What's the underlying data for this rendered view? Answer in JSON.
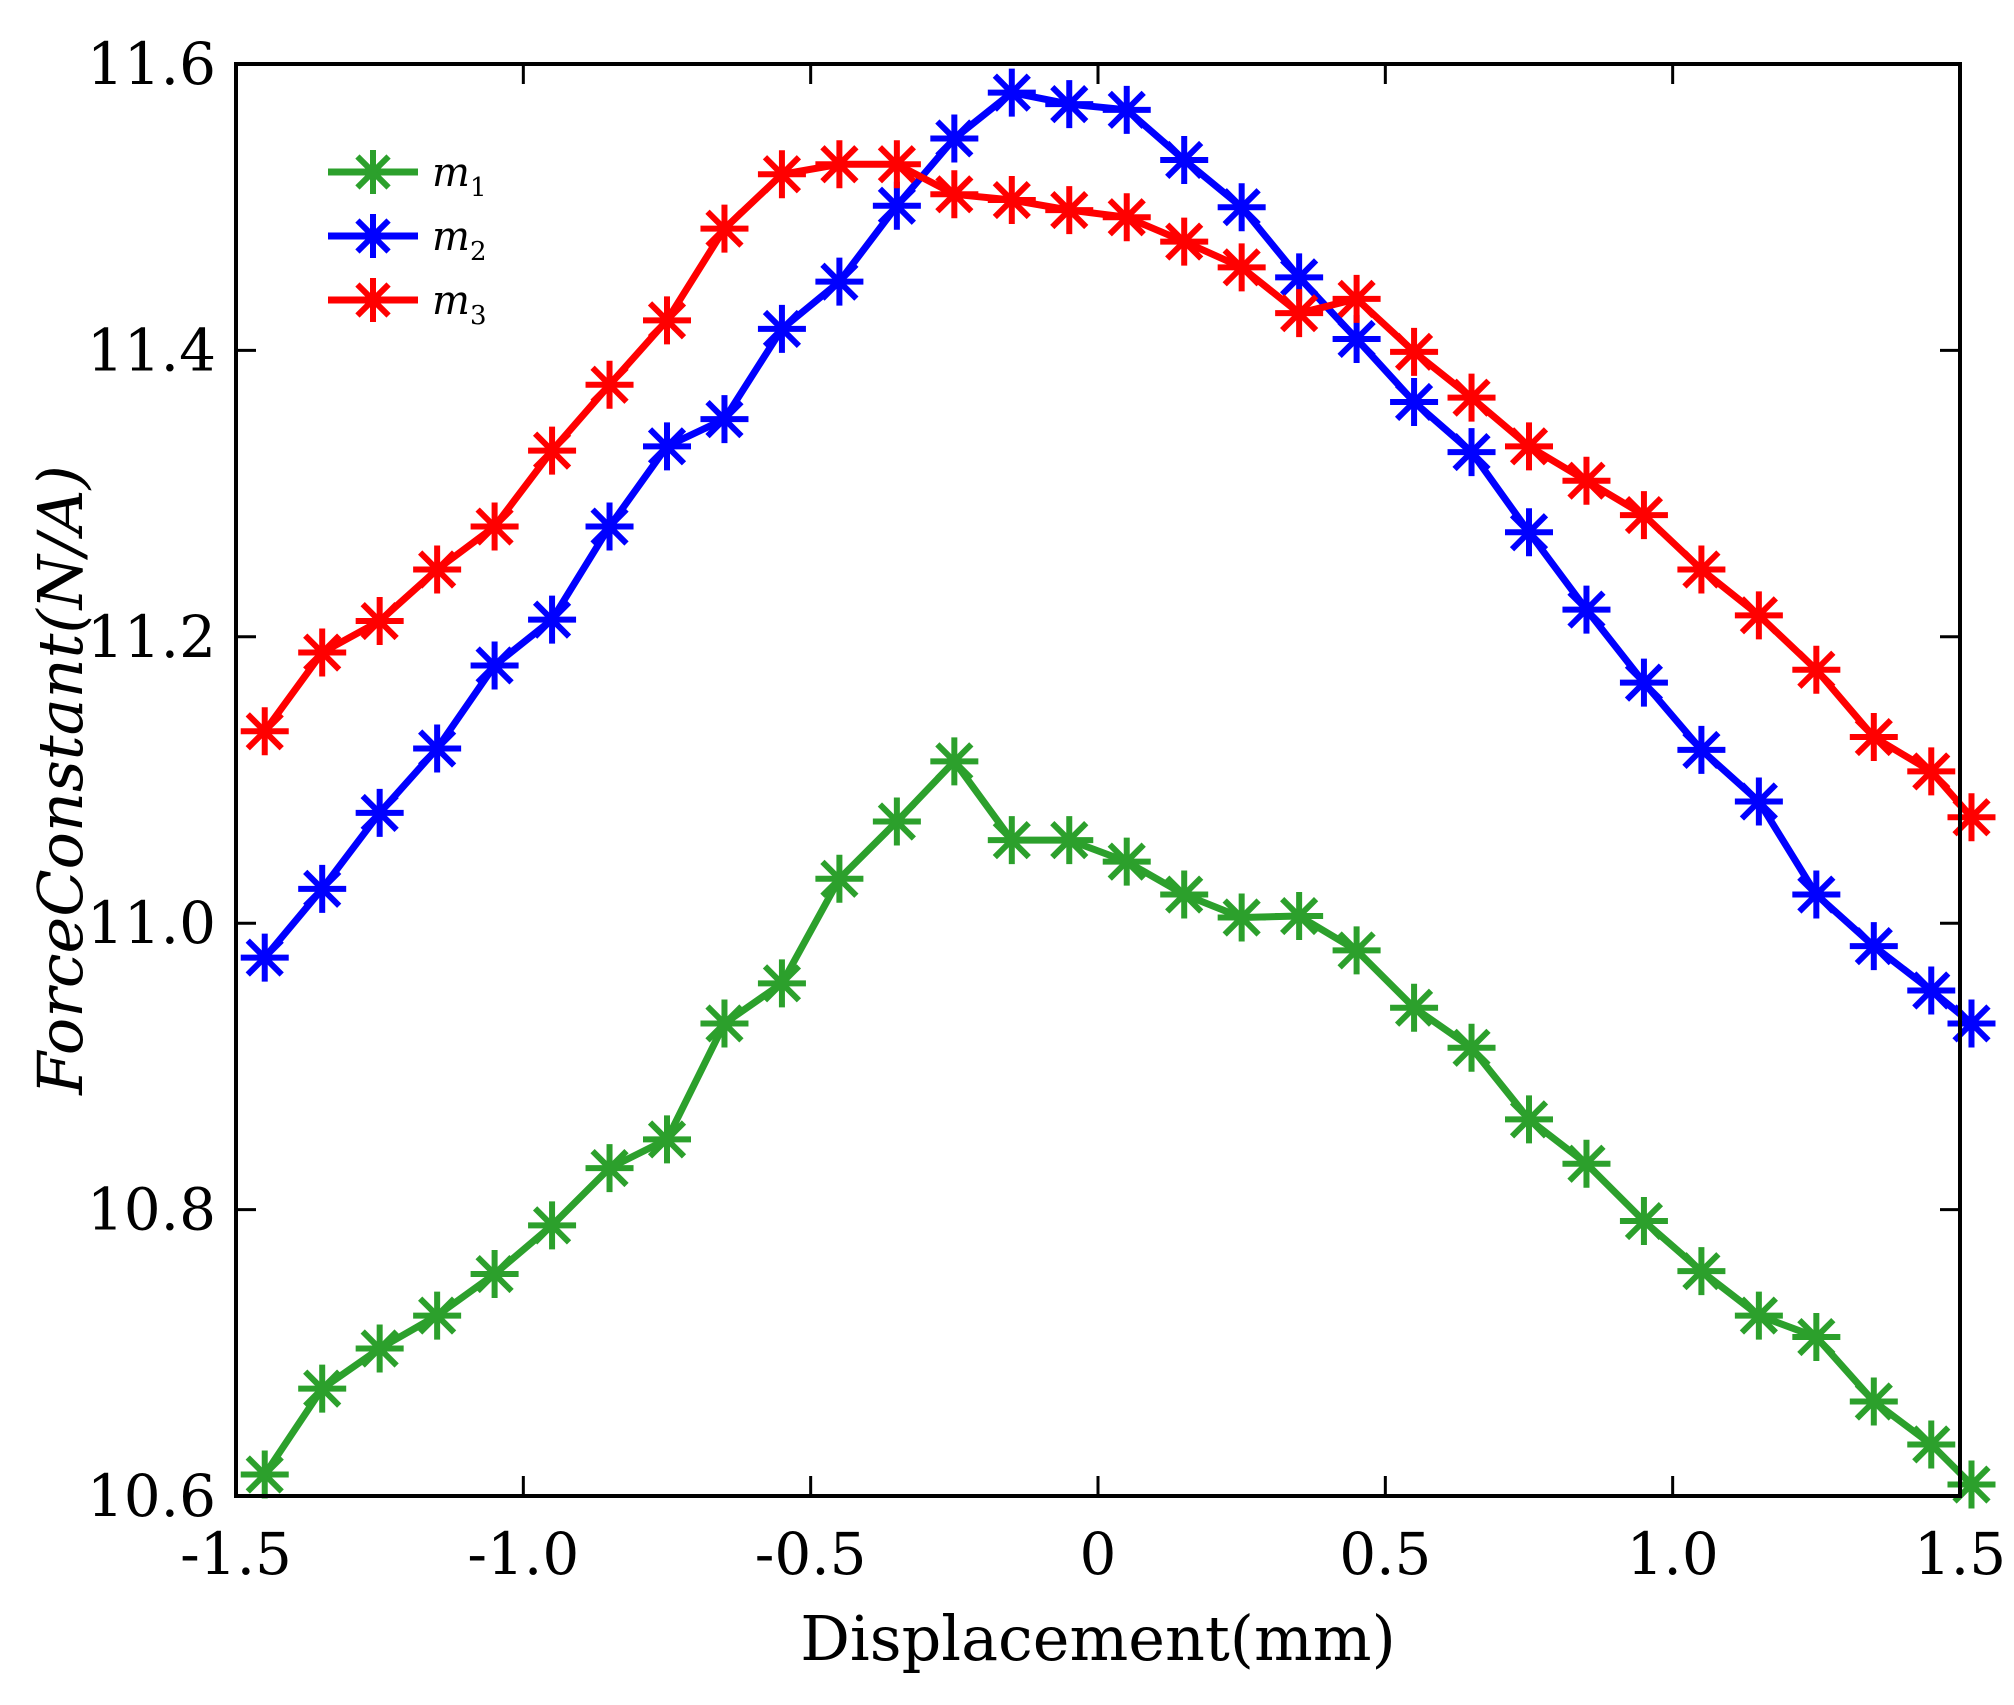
{
  "chart_data": {
    "type": "line",
    "title": "",
    "xlabel": "Displacement(mm)",
    "ylabel": "ForceConstant(N/A)",
    "xlim": [
      -1.5,
      1.5
    ],
    "ylim": [
      10.6,
      11.6
    ],
    "xticks": [
      -1.5,
      -1.0,
      -0.5,
      0,
      0.5,
      1.0,
      1.5
    ],
    "xtick_labels": [
      "-1.5",
      "-1.0",
      "-0.5",
      "0",
      "0.5",
      "1.0",
      "1.5"
    ],
    "yticks": [
      10.6,
      10.8,
      11.0,
      11.2,
      11.4,
      11.6
    ],
    "ytick_labels": [
      "10.6",
      "10.8",
      "11.0",
      "11.2",
      "11.4",
      "11.6"
    ],
    "grid": false,
    "legend_position": "top-left",
    "marker": "asterisk",
    "x": [
      -1.45,
      -1.35,
      -1.25,
      -1.15,
      -1.05,
      -0.95,
      -0.85,
      -0.75,
      -0.65,
      -0.55,
      -0.45,
      -0.35,
      -0.25,
      -0.15,
      -0.05,
      0.05,
      0.15,
      0.25,
      0.35,
      0.45,
      0.55,
      0.65,
      0.75,
      0.85,
      0.95,
      1.05,
      1.15,
      1.25,
      1.35,
      1.45
    ],
    "series": [
      {
        "name": "m",
        "subscript": "1",
        "color": "#2ca02c",
        "values": [
          10.615,
          10.675,
          10.703,
          10.726,
          10.755,
          10.789,
          10.829,
          10.849,
          10.93,
          10.958,
          11.031,
          11.071,
          11.113,
          11.058,
          11.058,
          11.043,
          11.02,
          11.004,
          11.005,
          10.981,
          10.941,
          10.913,
          10.863,
          10.832,
          10.792,
          10.757,
          10.726,
          10.711,
          10.666,
          10.636
        ]
      },
      {
        "name": "m",
        "subscript": "2",
        "color": "#0000ff",
        "values": [
          10.976,
          11.024,
          11.077,
          11.122,
          11.18,
          11.212,
          11.277,
          11.333,
          11.352,
          11.415,
          11.448,
          11.501,
          11.548,
          11.58,
          11.572,
          11.568,
          11.533,
          11.5,
          11.451,
          11.408,
          11.364,
          11.329,
          11.273,
          11.219,
          11.168,
          11.121,
          11.085,
          11.02,
          10.984,
          10.953
        ]
      },
      {
        "name": "m",
        "subscript": "3",
        "color": "#ff0000",
        "values": [
          11.134,
          11.189,
          11.211,
          11.247,
          11.277,
          11.33,
          11.376,
          11.421,
          11.485,
          11.523,
          11.53,
          11.53,
          11.509,
          11.505,
          11.498,
          11.493,
          11.476,
          11.458,
          11.426,
          11.436,
          11.399,
          11.367,
          11.333,
          11.309,
          11.285,
          11.247,
          11.215,
          11.177,
          11.13,
          11.106
        ]
      }
    ]
  },
  "series_extra_tail": [
    {
      "x": 1.52,
      "value": 10.608
    },
    {
      "x": 1.52,
      "value": 10.93
    },
    {
      "x": 1.52,
      "value": 11.074
    }
  ]
}
